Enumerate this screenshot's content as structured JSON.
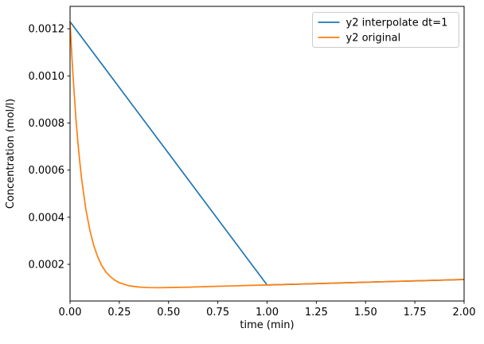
{
  "chart_data": {
    "type": "line",
    "title": "",
    "xlabel": "time (min)",
    "ylabel": "Concentration (mol/l)",
    "xlim": [
      0,
      2
    ],
    "ylim": [
      4.45e-05,
      0.001295
    ],
    "grid": false,
    "frame_color": "#000000",
    "xticks": {
      "values": [
        0,
        0.25,
        0.5,
        0.75,
        1.0,
        1.25,
        1.5,
        1.75,
        2.0
      ],
      "labels": [
        "0.00",
        "0.25",
        "0.50",
        "0.75",
        "1.00",
        "1.25",
        "1.50",
        "1.75",
        "2.00"
      ]
    },
    "yticks": {
      "values": [
        0.0002,
        0.0004,
        0.0006,
        0.0008,
        0.001,
        0.0012
      ],
      "labels": [
        "0.0002",
        "0.0004",
        "0.0006",
        "0.0008",
        "0.0010",
        "0.0012"
      ]
    },
    "legend": {
      "position": "upper right",
      "border_color": "#cccccc",
      "background": "#ffffff"
    },
    "series": [
      {
        "name": "y2 interpolate dt=1",
        "color": "#1f77b4",
        "points": [
          [
            0,
            0.00123
          ],
          [
            1.0,
            0.0001126
          ],
          [
            2.0,
            0.0001359
          ]
        ]
      },
      {
        "name": "y2 original",
        "color": "#ff7f0e",
        "points": [
          [
            0,
            0.00123
          ],
          [
            0.01,
            0.001071
          ],
          [
            0.02,
            0.000935
          ],
          [
            0.03,
            0.000817
          ],
          [
            0.04,
            0.000716
          ],
          [
            0.05,
            0.000629
          ],
          [
            0.06,
            0.000555
          ],
          [
            0.08,
            0.000435
          ],
          [
            0.1,
            0.000346
          ],
          [
            0.12,
            0.000281
          ],
          [
            0.14,
            0.000232
          ],
          [
            0.16,
            0.000196
          ],
          [
            0.18,
            0.00017
          ],
          [
            0.2,
            0.000151
          ],
          [
            0.225,
            0.000134
          ],
          [
            0.25,
            0.000122
          ],
          [
            0.3,
            0.000109
          ],
          [
            0.35,
            0.0001035
          ],
          [
            0.4,
            0.0001014
          ],
          [
            0.45,
            0.0001011
          ],
          [
            0.5,
            0.0001016
          ],
          [
            0.6,
            0.0001033
          ],
          [
            0.7,
            0.0001056
          ],
          [
            0.8,
            0.0001079
          ],
          [
            0.9,
            0.0001103
          ],
          [
            1.0,
            0.0001126
          ],
          [
            1.2,
            0.0001173
          ],
          [
            1.4,
            0.0001219
          ],
          [
            1.6,
            0.0001266
          ],
          [
            1.8,
            0.0001312
          ],
          [
            2.0,
            0.0001359
          ]
        ]
      }
    ]
  }
}
